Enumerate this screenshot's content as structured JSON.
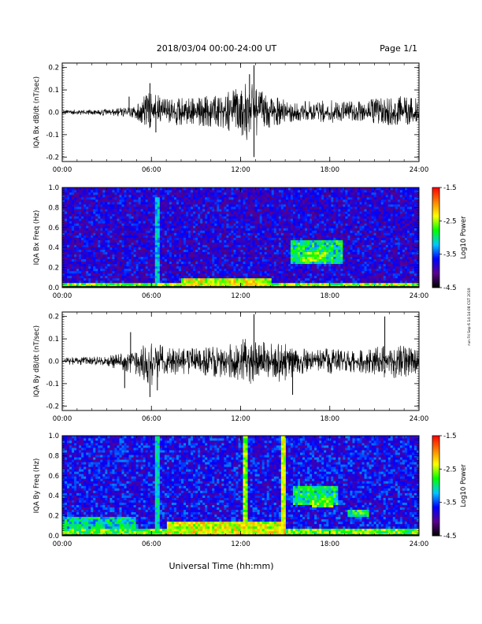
{
  "header": {
    "title": "2018/03/04  00:00-24:00 UT",
    "page": "Page 1/1"
  },
  "side_note": "run Fri Sep 6 14:14:08 CST 2019",
  "xlabel": "Universal Time (hh:mm)",
  "colors": {
    "waveform": "#000000",
    "spectrogram_background": "#1a3fd6",
    "colormap": [
      "#000000",
      "#5a0090",
      "#0000ff",
      "#00c8ff",
      "#00ff00",
      "#ffff00",
      "#ff8000",
      "#ff0000"
    ]
  },
  "chart_data": [
    {
      "type": "line",
      "panel": "bx-wave",
      "ylabel": "IQA Bx dB/dt (nT/sec)",
      "xlim": [
        0,
        24
      ],
      "ylim": [
        -0.22,
        0.22
      ],
      "x_ticks": [
        "00:00",
        "06:00",
        "12:00",
        "18:00",
        "24:00"
      ],
      "y_ticks": [
        "0.2",
        "0.1",
        "0.0",
        "-0.1",
        "-0.2"
      ],
      "envelope": {
        "x": [
          0,
          1,
          2,
          3,
          4,
          5,
          5.5,
          6,
          6.5,
          7,
          8,
          9,
          10,
          11,
          12,
          12.5,
          13,
          13.5,
          14,
          15,
          16,
          17,
          18,
          19,
          20,
          21,
          22,
          23,
          24
        ],
        "upper": [
          0.01,
          0.012,
          0.012,
          0.015,
          0.02,
          0.03,
          0.08,
          0.1,
          0.09,
          0.06,
          0.07,
          0.07,
          0.08,
          0.09,
          0.11,
          0.14,
          0.12,
          0.1,
          0.08,
          0.06,
          0.05,
          0.05,
          0.06,
          0.05,
          0.05,
          0.06,
          0.08,
          0.07,
          0.06
        ],
        "lower": [
          -0.01,
          -0.012,
          -0.012,
          -0.015,
          -0.02,
          -0.03,
          -0.06,
          -0.08,
          -0.07,
          -0.05,
          -0.06,
          -0.06,
          -0.07,
          -0.08,
          -0.1,
          -0.13,
          -0.11,
          -0.09,
          -0.07,
          -0.05,
          -0.04,
          -0.04,
          -0.05,
          -0.04,
          -0.04,
          -0.05,
          -0.06,
          -0.06,
          -0.05
        ]
      },
      "spikes": [
        {
          "x": 5.9,
          "y": 0.13
        },
        {
          "x": 6.3,
          "y": -0.09
        },
        {
          "x": 12.9,
          "y": 0.21
        },
        {
          "x": 12.9,
          "y": -0.2
        },
        {
          "x": 12.6,
          "y": 0.17
        },
        {
          "x": 4.5,
          "y": 0.07
        }
      ]
    },
    {
      "type": "heatmap",
      "panel": "bx-spec",
      "ylabel": "IQA Bx Freq (Hz)",
      "xlim": [
        0,
        24
      ],
      "ylim": [
        0,
        1
      ],
      "x_ticks": [
        "00:00",
        "06:00",
        "12:00",
        "18:00",
        "24:00"
      ],
      "y_ticks": [
        "1.0",
        "0.8",
        "0.6",
        "0.4",
        "0.2",
        "0.0"
      ],
      "colorbar_label": "Log10 Power",
      "colorbar_ticks": [
        "-1.5",
        "-2.5",
        "-3.5",
        "-4.5"
      ],
      "clim": [
        -4.5,
        -1.5
      ],
      "background_level": -3.8,
      "features": [
        {
          "kind": "band",
          "x0": 0,
          "x1": 24,
          "y0": 0.0,
          "y1": 0.05,
          "level": -2.6
        },
        {
          "kind": "band",
          "x0": 8,
          "x1": 14,
          "y0": 0.0,
          "y1": 0.1,
          "level": -2.4
        },
        {
          "kind": "patch",
          "x0": 15.3,
          "x1": 18.8,
          "y0": 0.25,
          "y1": 0.48,
          "level": -3.0
        },
        {
          "kind": "patch",
          "x0": 16.2,
          "x1": 17.8,
          "y0": 0.27,
          "y1": 0.35,
          "level": -2.7
        },
        {
          "kind": "vline",
          "x": 6.4,
          "y0": 0.0,
          "y1": 0.9,
          "level": -3.2
        }
      ]
    },
    {
      "type": "line",
      "panel": "by-wave",
      "ylabel": "IQA By dB/dt (nT/sec)",
      "xlim": [
        0,
        24
      ],
      "ylim": [
        -0.22,
        0.22
      ],
      "x_ticks": [
        "00:00",
        "06:00",
        "12:00",
        "18:00",
        "24:00"
      ],
      "y_ticks": [
        "0.2",
        "0.1",
        "0.0",
        "-0.1",
        "-0.2"
      ],
      "envelope": {
        "x": [
          0,
          1,
          2,
          3,
          4,
          5,
          5.5,
          6,
          6.5,
          7,
          8,
          9,
          10,
          11,
          12,
          12.5,
          13,
          13.5,
          14,
          15,
          16,
          17,
          18,
          19,
          20,
          21,
          22,
          23,
          24
        ],
        "upper": [
          0.015,
          0.02,
          0.02,
          0.025,
          0.035,
          0.05,
          0.08,
          0.1,
          0.08,
          0.06,
          0.06,
          0.06,
          0.07,
          0.08,
          0.09,
          0.12,
          0.1,
          0.09,
          0.08,
          0.08,
          0.06,
          0.05,
          0.06,
          0.05,
          0.05,
          0.06,
          0.09,
          0.07,
          0.06
        ],
        "lower": [
          -0.015,
          -0.02,
          -0.02,
          -0.025,
          -0.04,
          -0.06,
          -0.1,
          -0.12,
          -0.09,
          -0.06,
          -0.06,
          -0.06,
          -0.07,
          -0.08,
          -0.09,
          -0.12,
          -0.1,
          -0.09,
          -0.08,
          -0.1,
          -0.06,
          -0.05,
          -0.06,
          -0.05,
          -0.05,
          -0.06,
          -0.08,
          -0.07,
          -0.06
        ]
      },
      "spikes": [
        {
          "x": 5.9,
          "y": -0.16
        },
        {
          "x": 6.4,
          "y": -0.13
        },
        {
          "x": 12.9,
          "y": 0.21
        },
        {
          "x": 15.5,
          "y": -0.15
        },
        {
          "x": 21.7,
          "y": 0.2
        },
        {
          "x": 4.6,
          "y": 0.13
        },
        {
          "x": 4.2,
          "y": -0.12
        }
      ]
    },
    {
      "type": "heatmap",
      "panel": "by-spec",
      "ylabel": "IQA By Freq (Hz)",
      "xlim": [
        0,
        24
      ],
      "ylim": [
        0,
        1
      ],
      "x_ticks": [
        "00:00",
        "06:00",
        "12:00",
        "18:00",
        "24:00"
      ],
      "y_ticks": [
        "1.0",
        "0.8",
        "0.6",
        "0.4",
        "0.2",
        "0.0"
      ],
      "colorbar_label": "Log10 Power",
      "colorbar_ticks": [
        "-1.5",
        "-2.5",
        "-3.5",
        "-4.5"
      ],
      "clim": [
        -4.5,
        -1.5
      ],
      "background_level": -3.7,
      "features": [
        {
          "kind": "band",
          "x0": 0,
          "x1": 24,
          "y0": 0.0,
          "y1": 0.06,
          "level": -2.7
        },
        {
          "kind": "band",
          "x0": 7,
          "x1": 15,
          "y0": 0.0,
          "y1": 0.15,
          "level": -2.4
        },
        {
          "kind": "band",
          "x0": 0,
          "x1": 5,
          "y0": 0.06,
          "y1": 0.2,
          "level": -3.1
        },
        {
          "kind": "patch",
          "x0": 15.5,
          "x1": 18.5,
          "y0": 0.3,
          "y1": 0.5,
          "level": -3.0
        },
        {
          "kind": "patch",
          "x0": 16.8,
          "x1": 18.2,
          "y0": 0.28,
          "y1": 0.38,
          "level": -2.7
        },
        {
          "kind": "patch",
          "x0": 19.2,
          "x1": 20.6,
          "y0": 0.18,
          "y1": 0.26,
          "level": -2.9
        },
        {
          "kind": "vline",
          "x": 6.4,
          "y0": 0.0,
          "y1": 1.0,
          "level": -3.1
        },
        {
          "kind": "vline",
          "x": 12.3,
          "y0": 0.0,
          "y1": 1.0,
          "level": -2.6
        },
        {
          "kind": "vline",
          "x": 14.9,
          "y0": 0.0,
          "y1": 1.0,
          "level": -2.4
        }
      ]
    }
  ]
}
